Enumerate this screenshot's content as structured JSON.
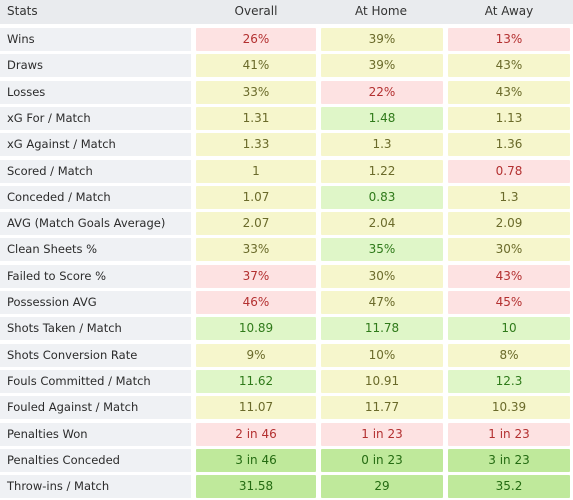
{
  "header": {
    "stats": "Stats",
    "overall": "Overall",
    "home": "At Home",
    "away": "At Away"
  },
  "colors": {
    "neutral": "#f6f6cc",
    "bad": "#fde2e2",
    "good": "#dff6c8",
    "great": "#bfe99b"
  },
  "rows": [
    {
      "label": "Wins",
      "overall": "26%",
      "home": "39%",
      "away": "13%",
      "overall_tone": "bad",
      "home_tone": "neutral",
      "away_tone": "bad"
    },
    {
      "label": "Draws",
      "overall": "41%",
      "home": "39%",
      "away": "43%",
      "overall_tone": "neutral",
      "home_tone": "neutral",
      "away_tone": "neutral"
    },
    {
      "label": "Losses",
      "overall": "33%",
      "home": "22%",
      "away": "43%",
      "overall_tone": "neutral",
      "home_tone": "bad",
      "away_tone": "neutral"
    },
    {
      "label": "xG For / Match",
      "overall": "1.31",
      "home": "1.48",
      "away": "1.13",
      "overall_tone": "neutral",
      "home_tone": "good",
      "away_tone": "neutral"
    },
    {
      "label": "xG Against / Match",
      "overall": "1.33",
      "home": "1.3",
      "away": "1.36",
      "overall_tone": "neutral",
      "home_tone": "neutral",
      "away_tone": "neutral"
    },
    {
      "label": "Scored / Match",
      "overall": "1",
      "home": "1.22",
      "away": "0.78",
      "overall_tone": "neutral",
      "home_tone": "neutral",
      "away_tone": "bad"
    },
    {
      "label": "Conceded / Match",
      "overall": "1.07",
      "home": "0.83",
      "away": "1.3",
      "overall_tone": "neutral",
      "home_tone": "good",
      "away_tone": "neutral"
    },
    {
      "label": "AVG (Match Goals Average)",
      "overall": "2.07",
      "home": "2.04",
      "away": "2.09",
      "overall_tone": "neutral",
      "home_tone": "neutral",
      "away_tone": "neutral"
    },
    {
      "label": "Clean Sheets %",
      "overall": "33%",
      "home": "35%",
      "away": "30%",
      "overall_tone": "neutral",
      "home_tone": "good",
      "away_tone": "neutral"
    },
    {
      "label": "Failed to Score %",
      "overall": "37%",
      "home": "30%",
      "away": "43%",
      "overall_tone": "bad",
      "home_tone": "neutral",
      "away_tone": "bad"
    },
    {
      "label": "Possession AVG",
      "overall": "46%",
      "home": "47%",
      "away": "45%",
      "overall_tone": "bad",
      "home_tone": "neutral",
      "away_tone": "bad"
    },
    {
      "label": "Shots Taken / Match",
      "overall": "10.89",
      "home": "11.78",
      "away": "10",
      "overall_tone": "good",
      "home_tone": "good",
      "away_tone": "good"
    },
    {
      "label": "Shots Conversion Rate",
      "overall": "9%",
      "home": "10%",
      "away": "8%",
      "overall_tone": "neutral",
      "home_tone": "neutral",
      "away_tone": "neutral"
    },
    {
      "label": "Fouls Committed / Match",
      "overall": "11.62",
      "home": "10.91",
      "away": "12.3",
      "overall_tone": "good",
      "home_tone": "neutral",
      "away_tone": "good"
    },
    {
      "label": "Fouled Against / Match",
      "overall": "11.07",
      "home": "11.77",
      "away": "10.39",
      "overall_tone": "neutral",
      "home_tone": "neutral",
      "away_tone": "neutral"
    },
    {
      "label": "Penalties Won",
      "overall": "2 in 46",
      "home": "1 in 23",
      "away": "1 in 23",
      "overall_tone": "bad",
      "home_tone": "bad",
      "away_tone": "bad"
    },
    {
      "label": "Penalties Conceded",
      "overall": "3 in 46",
      "home": "0 in 23",
      "away": "3 in 23",
      "overall_tone": "great",
      "home_tone": "great",
      "away_tone": "great"
    },
    {
      "label": "Throw-ins / Match",
      "overall": "31.58",
      "home": "29",
      "away": "35.2",
      "overall_tone": "great",
      "home_tone": "great",
      "away_tone": "great"
    }
  ]
}
